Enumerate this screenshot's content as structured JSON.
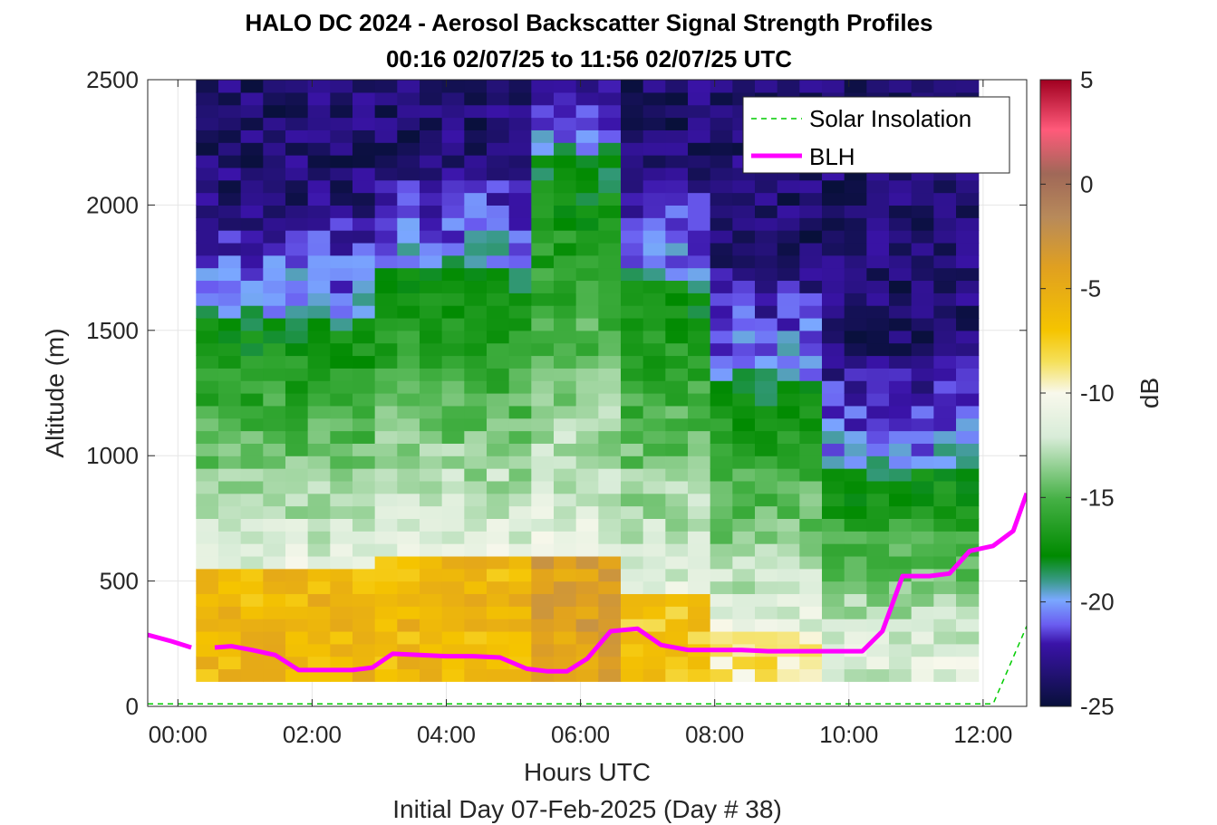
{
  "chart_data": {
    "type": "heatmap",
    "title": "HALO DC 2024 - Aerosol Backscatter Signal Strength Profiles",
    "subtitle": "00:16 02/07/25 to 11:56 02/07/25  UTC",
    "xlabel": "Hours UTC",
    "xlabel2": "Initial Day 07-Feb-2025 (Day # 38)",
    "ylabel": "Altitude (m)",
    "xlim": [
      -0.45,
      12.65
    ],
    "ylim": [
      0,
      2500
    ],
    "x_ticks": [
      0,
      2,
      4,
      6,
      8,
      10,
      12
    ],
    "x_tick_labels": [
      "00:00",
      "02:00",
      "04:00",
      "06:00",
      "08:00",
      "10:00",
      "12:00"
    ],
    "y_ticks": [
      0,
      500,
      1000,
      1500,
      2000,
      2500
    ],
    "y_tick_labels": [
      "0",
      "500",
      "1000",
      "1500",
      "2000",
      "2500"
    ],
    "grid": true,
    "colorbar": {
      "label": "dB",
      "lim": [
        -25,
        5
      ],
      "ticks": [
        5,
        0,
        -5,
        -10,
        -15,
        -20,
        -25
      ],
      "tick_labels": [
        "5",
        "0",
        "-5",
        "-10",
        "-15",
        "-20",
        "-25"
      ]
    },
    "legend": {
      "placement": "top-right",
      "entries": [
        "Solar Insolation",
        "BLH"
      ]
    },
    "heatmap": {
      "x_start": 0.27,
      "x_end": 11.93,
      "y_start": 100,
      "y_end": 2500,
      "n_cols": 35,
      "n_rows": 48,
      "profile_segments": [
        {
          "from_col": 0,
          "surface_db": -6,
          "top_aerosol_alt": 550,
          "mix_top_alt": 1550
        },
        {
          "from_col": 8,
          "surface_db": -6,
          "top_aerosol_alt": 600,
          "mix_top_alt": 1750
        },
        {
          "from_col": 15,
          "surface_db": -4,
          "top_aerosol_alt": 620,
          "mix_top_alt": 2200
        },
        {
          "from_col": 19,
          "surface_db": -7,
          "top_aerosol_alt": 450,
          "mix_top_alt": 1700
        },
        {
          "from_col": 23,
          "surface_db": -9,
          "top_aerosol_alt": 300,
          "mix_top_alt": 1300
        },
        {
          "from_col": 28,
          "surface_db": -12,
          "top_aerosol_alt": 150,
          "mix_top_alt": 950
        }
      ]
    },
    "series": [
      {
        "name": "BLH",
        "color": "#ff00ff",
        "segments": [
          {
            "x": [
              -0.45,
              -0.1,
              0.2
            ],
            "y": [
              285,
              260,
              235
            ]
          },
          {
            "x": [
              0.55,
              0.8,
              1.1,
              1.45,
              1.8,
              2.2,
              2.6,
              2.9,
              3.2,
              3.6,
              4.0,
              4.4,
              4.8,
              5.2,
              5.5,
              5.8,
              6.1,
              6.45,
              6.85,
              7.2,
              7.6,
              8.0,
              8.4,
              8.8,
              9.2,
              9.6,
              10.2,
              10.5,
              10.8,
              11.2,
              11.5,
              11.8,
              12.15,
              12.45,
              12.65
            ],
            "y": [
              235,
              240,
              225,
              205,
              145,
              145,
              145,
              155,
              210,
              205,
              200,
              200,
              195,
              150,
              140,
              140,
              190,
              300,
              310,
              245,
              225,
              225,
              225,
              220,
              220,
              220,
              220,
              300,
              520,
              520,
              530,
              620,
              640,
              700,
              850
            ]
          }
        ]
      },
      {
        "name": "Solar Insolation",
        "color": "#00cc00",
        "x": [
          -0.45,
          12.15,
          12.65
        ],
        "y": [
          10,
          10,
          320
        ]
      }
    ]
  }
}
